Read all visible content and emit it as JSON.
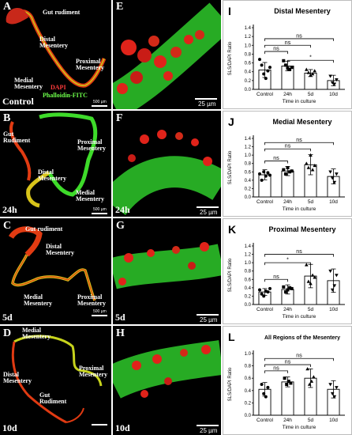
{
  "panels": {
    "A": {
      "letter": "A",
      "corner": "Control",
      "scalebar": "500 µm",
      "labels": {
        "gut": "Gut rudiment",
        "distal": "Distal\nMesentery",
        "proximal": "Proximal\nMesentery",
        "medial": "Medial\nMesentery"
      },
      "legend": {
        "dapi": "DAPI",
        "phalloidin": "Phalloidin-FITC"
      }
    },
    "B": {
      "letter": "B",
      "corner": "24h",
      "scalebar": "500 µm",
      "labels": {
        "gut": "Gut\nRudiment",
        "proximal": "Proximal\nMesentery",
        "distal": "Distal\nMesentery",
        "medial": "Medial\nMesentery"
      }
    },
    "C": {
      "letter": "C",
      "corner": "5d",
      "scalebar": "500 µm",
      "labels": {
        "gut": "Gut rudiment",
        "distal": "Distal\nMesentery",
        "medial": "Medial\nMesentery",
        "proximal": "Proximal\nMesentery"
      }
    },
    "D": {
      "letter": "D",
      "corner": "10d",
      "labels": {
        "medial": "Medial\nMesentery",
        "proximal": "Proximal\nMesentery",
        "distal": "Distal\nMesentery",
        "gut": "Gut\nRudiment"
      }
    },
    "E": {
      "letter": "E",
      "scalebar": "25 µm"
    },
    "F": {
      "letter": "F",
      "corner": "24h",
      "scalebar": "25 µm"
    },
    "G": {
      "letter": "G",
      "corner": "5d",
      "scalebar": "25 µm"
    },
    "H": {
      "letter": "H",
      "corner": "10d",
      "scalebar": "25 µm"
    }
  },
  "chart_data": [
    {
      "panel": "I",
      "type": "bar",
      "title": "Distal Mesentery",
      "xlabel": "Time in culture",
      "ylabel": "SLS/DAPI Ratio",
      "categories": [
        "Control",
        "24h",
        "5d",
        "10d"
      ],
      "values": [
        0.44,
        0.53,
        0.37,
        0.2
      ],
      "errors": [
        0.17,
        0.11,
        0.08,
        0.12
      ],
      "ylim": [
        0,
        1.4
      ],
      "yticks": [
        0.0,
        0.2,
        0.4,
        0.6,
        0.8,
        1.0,
        1.2,
        1.4
      ],
      "points": [
        [
          0.68,
          0.55,
          0.35,
          0.25,
          0.42,
          0.5
        ],
        [
          0.65,
          0.55,
          0.48,
          0.45,
          0.5
        ],
        [
          0.45,
          0.38,
          0.32,
          0.35,
          0.42
        ],
        [
          0.3,
          0.15,
          0.12,
          0.22
        ]
      ],
      "brackets": [
        {
          "from": 0,
          "to": 1,
          "label": "ns",
          "level": 0.86
        },
        {
          "from": 0,
          "to": 2,
          "label": "ns",
          "level": 1.0
        },
        {
          "from": 0,
          "to": 3,
          "label": "ns",
          "level": 1.15
        },
        {
          "from": 1,
          "to": 3,
          "label": "*",
          "level": 0.66
        }
      ]
    },
    {
      "panel": "J",
      "type": "bar",
      "title": "Medial Mesentery",
      "xlabel": "Time in culture",
      "ylabel": "SLS/DAPI Ratio",
      "categories": [
        "Control",
        "24h",
        "5d",
        "10d"
      ],
      "values": [
        0.53,
        0.62,
        0.77,
        0.49
      ],
      "errors": [
        0.12,
        0.11,
        0.24,
        0.18
      ],
      "ylim": [
        0,
        1.4
      ],
      "yticks": [
        0.0,
        0.2,
        0.4,
        0.6,
        0.8,
        1.0,
        1.2,
        1.4
      ],
      "points": [
        [
          0.55,
          0.4,
          0.6,
          0.5,
          0.58,
          0.52
        ],
        [
          0.65,
          0.55,
          0.7,
          0.6,
          0.62
        ],
        [
          0.8,
          0.7,
          1.0,
          0.65,
          0.75
        ],
        [
          0.6,
          0.45,
          0.35,
          0.55
        ]
      ],
      "brackets": [
        {
          "from": 0,
          "to": 1,
          "label": "ns",
          "level": 0.86
        },
        {
          "from": 0,
          "to": 2,
          "label": "ns",
          "level": 1.15
        },
        {
          "from": 0,
          "to": 3,
          "label": "ns",
          "level": 1.3
        }
      ]
    },
    {
      "panel": "K",
      "type": "bar",
      "title": "Proximal Mesentery",
      "xlabel": "Time in culture",
      "ylabel": "SLS/DAPI Ratio",
      "categories": [
        "Control",
        "24h",
        "5d",
        "10d"
      ],
      "values": [
        0.3,
        0.36,
        0.68,
        0.57
      ],
      "errors": [
        0.08,
        0.11,
        0.28,
        0.28
      ],
      "ylim": [
        0,
        1.4
      ],
      "yticks": [
        0.0,
        0.2,
        0.4,
        0.6,
        0.8,
        1.0,
        1.2,
        1.4
      ],
      "points": [
        [
          0.35,
          0.25,
          0.2,
          0.32,
          0.3,
          0.38
        ],
        [
          0.42,
          0.3,
          0.35,
          0.4,
          0.38
        ],
        [
          0.95,
          0.55,
          0.5,
          0.7,
          0.65
        ],
        [
          0.8,
          0.35,
          0.45,
          0.7
        ]
      ],
      "brackets": [
        {
          "from": 0,
          "to": 1,
          "label": "ns",
          "level": 0.6
        },
        {
          "from": 0,
          "to": 2,
          "label": "*",
          "level": 1.0
        },
        {
          "from": 0,
          "to": 3,
          "label": "ns",
          "level": 1.2
        }
      ]
    },
    {
      "panel": "L",
      "type": "bar",
      "title": "All Regions of the Mesentery",
      "xlabel": "Time in culture",
      "ylabel": "SLS/DAPI Ratio",
      "categories": [
        "Control",
        "24h",
        "5d",
        "10d"
      ],
      "values": [
        0.42,
        0.54,
        0.6,
        0.42
      ],
      "errors": [
        0.11,
        0.08,
        0.15,
        0.14
      ],
      "ylim": [
        0,
        1.0
      ],
      "yticks": [
        0.0,
        0.2,
        0.4,
        0.6,
        0.8,
        1.0
      ],
      "points": [
        [
          0.5,
          0.35,
          0.3,
          0.45
        ],
        [
          0.6,
          0.5,
          0.55,
          0.52
        ],
        [
          0.75,
          0.5,
          0.55,
          0.62
        ],
        [
          0.5,
          0.35,
          0.3,
          0.45
        ]
      ],
      "brackets": [
        {
          "from": 0,
          "to": 1,
          "label": "ns",
          "level": 0.72
        },
        {
          "from": 0,
          "to": 2,
          "label": "ns",
          "level": 0.82
        },
        {
          "from": 0,
          "to": 3,
          "label": "ns",
          "level": 0.92
        }
      ]
    }
  ]
}
